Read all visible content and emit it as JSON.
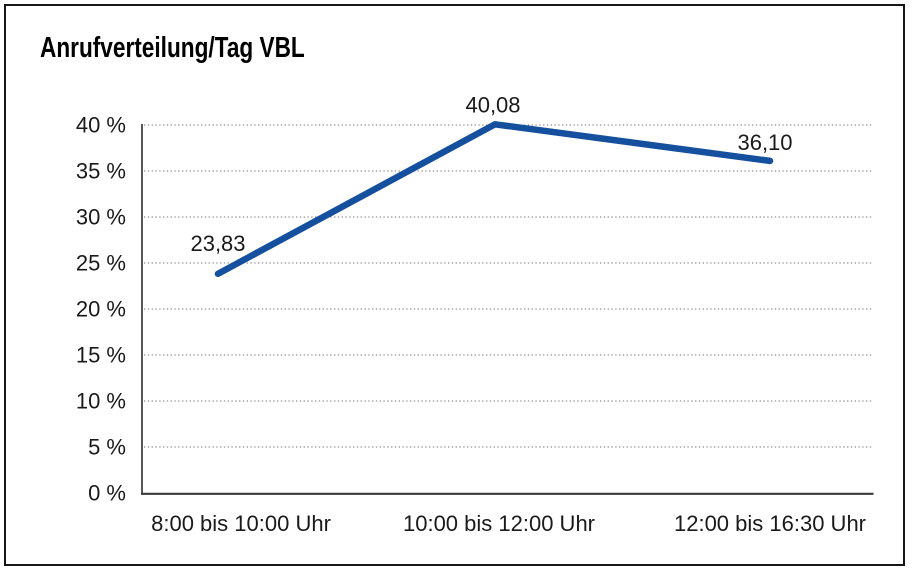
{
  "frame": {
    "border_color": "#161616",
    "background_color": "#ffffff"
  },
  "chart_data": {
    "type": "line",
    "title": "Anrufverteilung/Tag VBL",
    "categories": [
      "8:00 bis 10:00 Uhr",
      "10:00 bis 12:00 Uhr",
      "12:00 bis 16:30 Uhr"
    ],
    "series": [
      {
        "name": "Anrufverteilung/Tag VBL",
        "values": [
          23.83,
          40.08,
          36.1
        ],
        "data_labels": [
          "23,83",
          "40,08",
          "36,10"
        ]
      }
    ],
    "xlabel": "",
    "ylabel": "",
    "y_axis": {
      "min": 0,
      "max": 40,
      "step": 5,
      "unit": "%",
      "tick_labels": [
        "0 %",
        "5 %",
        "10 %",
        "15 %",
        "20 %",
        "25 %",
        "30 %",
        "35 %",
        "40 %"
      ]
    },
    "grid": "horizontal-dotted",
    "legend_position": "none",
    "colors": {
      "line": "#14509E",
      "axis": "#3a3a3a",
      "gridline": "#7a7a7a",
      "tick_text": "#1a1a1a",
      "data_label_text": "#1a1a1a",
      "title_text": "#000000"
    }
  }
}
